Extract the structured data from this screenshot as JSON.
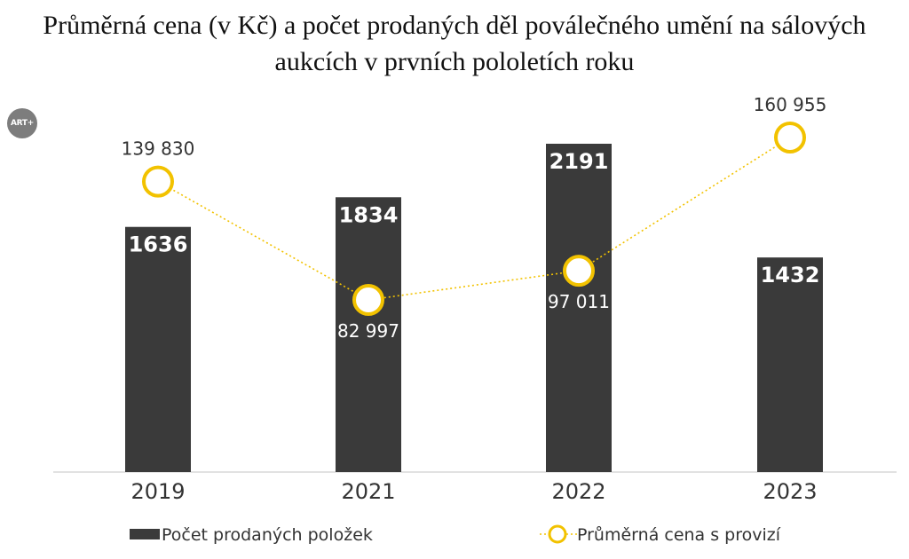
{
  "chart_data": {
    "type": "bar",
    "title": "Průměrná cena (v Kč) a počet prodaných děl poválečného umění na sálových aukcích v prvních pololetích roku",
    "categories": [
      "2019",
      "2021",
      "2022",
      "2023"
    ],
    "series": [
      {
        "name": "Počet prodaných položek",
        "type": "bar",
        "values": [
          1636,
          1834,
          2191,
          1432
        ],
        "labels": [
          "1636",
          "1834",
          "2191",
          "1432"
        ],
        "color": "#3a3a3a"
      },
      {
        "name": "Průměrná cena s provizí",
        "type": "line",
        "values": [
          139830,
          82997,
          97011,
          160955
        ],
        "labels": [
          "139 830",
          "82 997",
          "97 011",
          "160 955"
        ],
        "color": "#f2c200"
      }
    ],
    "grid": false,
    "legend_position": "bottom"
  },
  "logo_text": "ART+"
}
